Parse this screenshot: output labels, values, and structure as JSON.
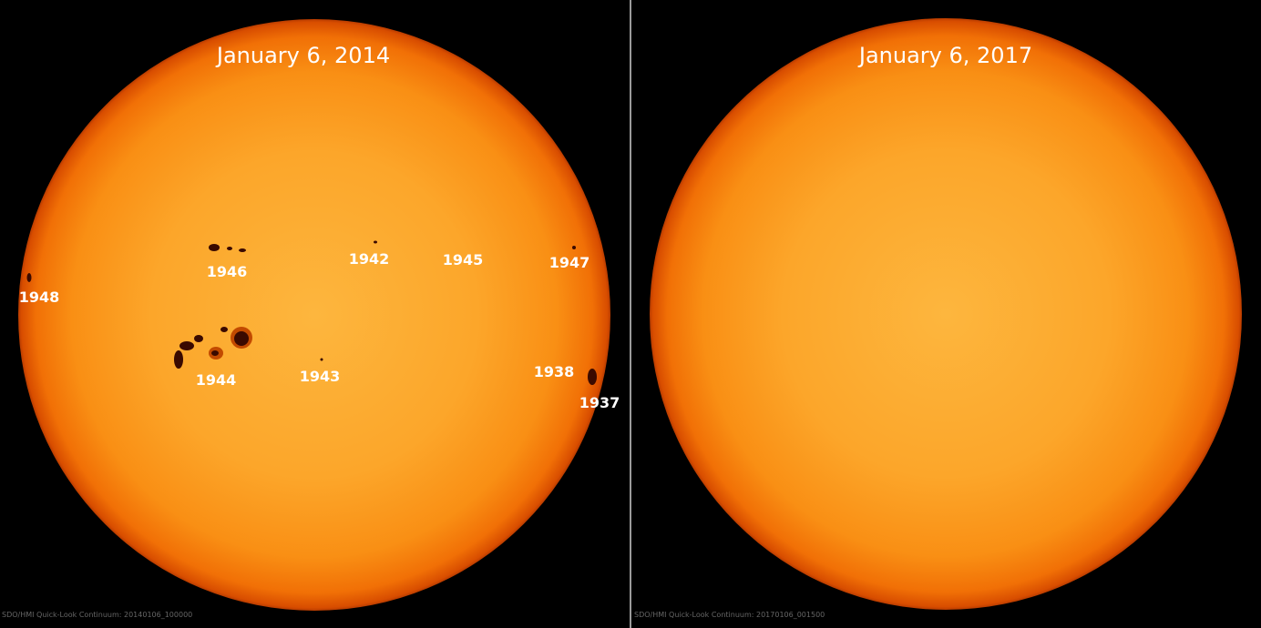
{
  "panels": [
    {
      "title": "January 6, 2014",
      "labels": [
        "1946",
        "1942",
        "1945",
        "1947",
        "1948",
        "1944",
        "1943",
        "1938",
        "1937"
      ],
      "caption": "SDO/HMI Quick-Look Continuum: 20140106_100000"
    },
    {
      "title": "January 6, 2017",
      "caption": "SDO/HMI Quick-Look Continuum: 20170106_001500"
    }
  ]
}
